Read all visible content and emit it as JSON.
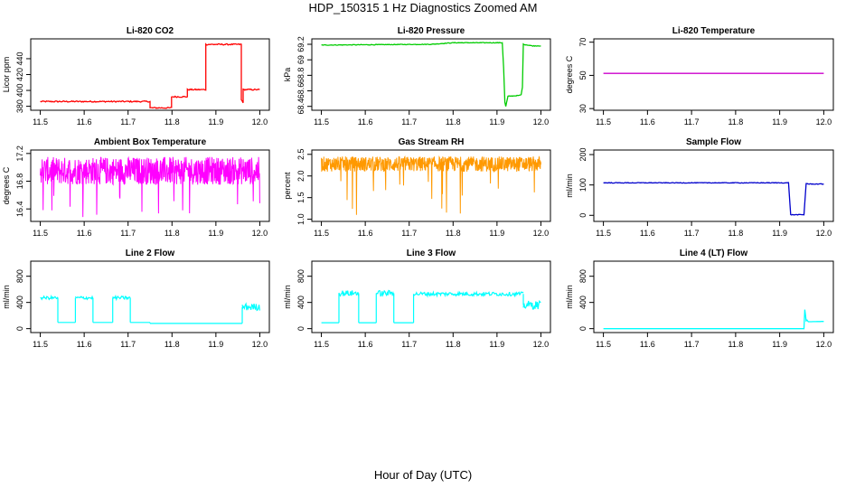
{
  "figure": {
    "title": "HDP_150315  1 Hz Diagnostics Zoomed AM",
    "xlabel": "Hour of Day (UTC)"
  },
  "chart_data": [
    {
      "type": "line",
      "title": "Li-820 CO2",
      "ylabel": "Licor ppm",
      "color": "#ff0000",
      "x_ticks": [
        "11.5",
        "11.6",
        "11.7",
        "11.8",
        "11.9",
        "12.0"
      ],
      "xlim": [
        11.5,
        12.0
      ],
      "y_ticks": [
        380,
        400,
        420,
        440
      ],
      "ylim": [
        375,
        465
      ],
      "noise": 0.8,
      "series": [
        {
          "x": [
            11.5,
            11.75,
            11.75,
            11.799,
            11.799,
            11.835,
            11.835,
            11.877,
            11.877,
            11.958,
            11.958,
            11.962,
            11.962,
            12.0
          ],
          "y": [
            386,
            386,
            378,
            378,
            392,
            392,
            401,
            401,
            458,
            458,
            388,
            385,
            401,
            401
          ]
        }
      ]
    },
    {
      "type": "line",
      "title": "Li-820 Pressure",
      "ylabel": "kPa",
      "color": "#00cc00",
      "x_ticks": [
        "11.5",
        "11.6",
        "11.7",
        "11.8",
        "11.9",
        "12.0"
      ],
      "xlim": [
        11.5,
        12.0
      ],
      "y_ticks": [
        68.4,
        68.6,
        68.8,
        69.0,
        69.2
      ],
      "ylim": [
        68.35,
        69.27
      ],
      "noise": 0.004,
      "series": [
        {
          "x": [
            11.5,
            11.75,
            11.8,
            11.912,
            11.915,
            11.918,
            11.92,
            11.925,
            11.95,
            11.955,
            11.958,
            11.96,
            11.97,
            11.98,
            12.0
          ],
          "y": [
            69.19,
            69.2,
            69.22,
            69.22,
            68.9,
            68.45,
            68.4,
            68.53,
            68.54,
            68.55,
            68.65,
            69.2,
            69.19,
            69.18,
            69.18
          ]
        }
      ]
    },
    {
      "type": "line",
      "title": "Li-820 Temperature",
      "ylabel": "degrees C",
      "color": "#cc00cc",
      "x_ticks": [
        "11.5",
        "11.6",
        "11.7",
        "11.8",
        "11.9",
        "12.0"
      ],
      "xlim": [
        11.5,
        12.0
      ],
      "y_ticks": [
        30,
        50,
        70
      ],
      "ylim": [
        29,
        72
      ],
      "noise": 0,
      "series": [
        {
          "x": [
            11.5,
            12.0
          ],
          "y": [
            51.2,
            51.2
          ]
        }
      ]
    },
    {
      "type": "line",
      "title": "Ambient Box Temperature",
      "ylabel": "degrees C",
      "color": "#ff00ff",
      "x_ticks": [
        "11.5",
        "11.6",
        "11.7",
        "11.8",
        "11.9",
        "12.0"
      ],
      "xlim": [
        11.5,
        12.0
      ],
      "y_ticks": [
        16.4,
        16.8,
        17.2
      ],
      "ylim": [
        16.22,
        17.25
      ],
      "band": [
        16.75,
        17.15
      ],
      "spikes": [
        16.28,
        16.6
      ],
      "series": [
        {
          "x": [
            11.5,
            12.0
          ],
          "y": [
            16.9,
            16.9
          ]
        }
      ]
    },
    {
      "type": "line",
      "title": "Gas Stream RH",
      "ylabel": "percent",
      "color": "#ff9900",
      "x_ticks": [
        "11.5",
        "11.6",
        "11.7",
        "11.8",
        "11.9",
        "12.0"
      ],
      "xlim": [
        11.5,
        12.0
      ],
      "y_ticks": [
        1.0,
        1.5,
        2.0,
        2.5
      ],
      "ylim": [
        0.95,
        2.6
      ],
      "band": [
        2.1,
        2.45
      ],
      "spikes": [
        1.05,
        1.9
      ],
      "series": [
        {
          "x": [
            11.5,
            12.0
          ],
          "y": [
            2.3,
            2.3
          ]
        }
      ]
    },
    {
      "type": "line",
      "title": "Sample Flow",
      "ylabel": "ml/min",
      "color": "#0000cc",
      "x_ticks": [
        "11.5",
        "11.6",
        "11.7",
        "11.8",
        "11.9",
        "12.0"
      ],
      "xlim": [
        11.5,
        12.0
      ],
      "y_ticks": [
        0,
        100,
        200
      ],
      "ylim": [
        -20,
        215
      ],
      "noise": 1,
      "series": [
        {
          "x": [
            11.5,
            11.92,
            11.925,
            11.955,
            11.96,
            11.965,
            12.0
          ],
          "y": [
            107,
            107,
            2,
            2,
            105,
            103,
            103
          ]
        }
      ]
    },
    {
      "type": "line",
      "title": "Line 2 Flow",
      "ylabel": "ml/min",
      "color": "#00ffff",
      "x_ticks": [
        "11.5",
        "11.6",
        "11.7",
        "11.8",
        "11.9",
        "12.0"
      ],
      "xlim": [
        11.5,
        12.0
      ],
      "y_ticks": [
        0,
        400,
        800
      ],
      "ylim": [
        -60,
        1030
      ],
      "noise": 0,
      "segments": [
        {
          "x0": 11.5,
          "x1": 11.54,
          "y": 470,
          "spread": 50
        },
        {
          "x0": 11.54,
          "x1": 11.58,
          "y": 95,
          "spread": 0
        },
        {
          "x0": 11.58,
          "x1": 11.62,
          "y": 470,
          "spread": 50
        },
        {
          "x0": 11.62,
          "x1": 11.665,
          "y": 95,
          "spread": 0
        },
        {
          "x0": 11.665,
          "x1": 11.705,
          "y": 470,
          "spread": 50
        },
        {
          "x0": 11.705,
          "x1": 11.75,
          "y": 95,
          "spread": 0
        },
        {
          "x0": 11.75,
          "x1": 11.96,
          "y": 80,
          "spread": 0
        },
        {
          "x0": 11.96,
          "x1": 12.0,
          "y": 330,
          "spread": 110
        }
      ]
    },
    {
      "type": "line",
      "title": "Line 3 Flow",
      "ylabel": "ml/min",
      "color": "#00ffff",
      "x_ticks": [
        "11.5",
        "11.6",
        "11.7",
        "11.8",
        "11.9",
        "12.0"
      ],
      "xlim": [
        11.5,
        12.0
      ],
      "y_ticks": [
        0,
        400,
        800
      ],
      "ylim": [
        -60,
        1030
      ],
      "noise": 0,
      "segments": [
        {
          "x0": 11.5,
          "x1": 11.54,
          "y": 90,
          "spread": 0
        },
        {
          "x0": 11.54,
          "x1": 11.585,
          "y": 540,
          "spread": 90
        },
        {
          "x0": 11.585,
          "x1": 11.625,
          "y": 90,
          "spread": 0
        },
        {
          "x0": 11.625,
          "x1": 11.665,
          "y": 540,
          "spread": 90
        },
        {
          "x0": 11.665,
          "x1": 11.71,
          "y": 90,
          "spread": 0
        },
        {
          "x0": 11.71,
          "x1": 11.96,
          "y": 530,
          "spread": 60
        },
        {
          "x0": 11.96,
          "x1": 12.0,
          "y": 360,
          "spread": 130
        }
      ]
    },
    {
      "type": "line",
      "title": "Line 4 (LT) Flow",
      "ylabel": "ml/min",
      "color": "#00ffff",
      "x_ticks": [
        "11.5",
        "11.6",
        "11.7",
        "11.8",
        "11.9",
        "12.0"
      ],
      "xlim": [
        11.5,
        12.0
      ],
      "y_ticks": [
        0,
        400,
        800
      ],
      "ylim": [
        -60,
        1030
      ],
      "noise": 0,
      "series": [
        {
          "x": [
            11.5,
            11.955,
            11.957,
            11.96,
            11.962,
            11.965,
            12.0
          ],
          "y": [
            0,
            0,
            290,
            120,
            130,
            105,
            110
          ]
        }
      ]
    }
  ]
}
